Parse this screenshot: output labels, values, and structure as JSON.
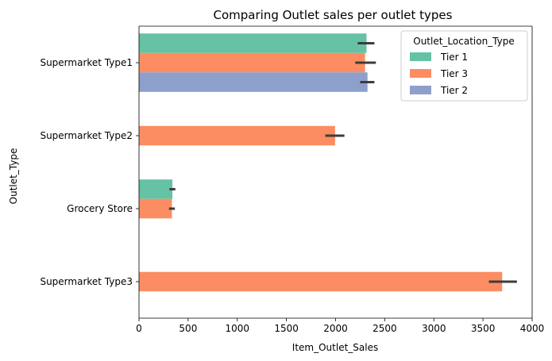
{
  "chart_data": {
    "type": "bar",
    "orientation": "horizontal",
    "title": "Comparing Outlet sales per outlet types",
    "xlabel": "Item_Outlet_Sales",
    "ylabel": "Outlet_Type",
    "xlim": [
      0,
      4000
    ],
    "xticks": [
      "0",
      "500",
      "1000",
      "1500",
      "2000",
      "2500",
      "3000",
      "3500",
      "4000"
    ],
    "xtick_values": [
      0,
      500,
      1000,
      1500,
      2000,
      2500,
      3000,
      3500,
      4000
    ],
    "categories": [
      "Supermarket Type1",
      "Supermarket Type2",
      "Grocery Store",
      "Supermarket Type3"
    ],
    "legend": {
      "title": "Outlet_Location_Type",
      "position": "top-right"
    },
    "grid": false,
    "series": [
      {
        "name": "Tier 1",
        "color": "#66c2a5",
        "values": [
          2315,
          null,
          340,
          null
        ],
        "ci_low": [
          2225,
          null,
          310,
          null
        ],
        "ci_high": [
          2395,
          null,
          370,
          null
        ]
      },
      {
        "name": "Tier 3",
        "color": "#fc8d62",
        "values": [
          2300,
          1995,
          335,
          3695
        ],
        "ci_low": [
          2200,
          1895,
          305,
          3560
        ],
        "ci_high": [
          2410,
          2090,
          365,
          3845
        ]
      },
      {
        "name": "Tier 2",
        "color": "#8da0cb",
        "values": [
          2325,
          null,
          null,
          null
        ],
        "ci_low": [
          2250,
          null,
          null,
          null
        ],
        "ci_high": [
          2395,
          null,
          null,
          null
        ]
      }
    ]
  }
}
